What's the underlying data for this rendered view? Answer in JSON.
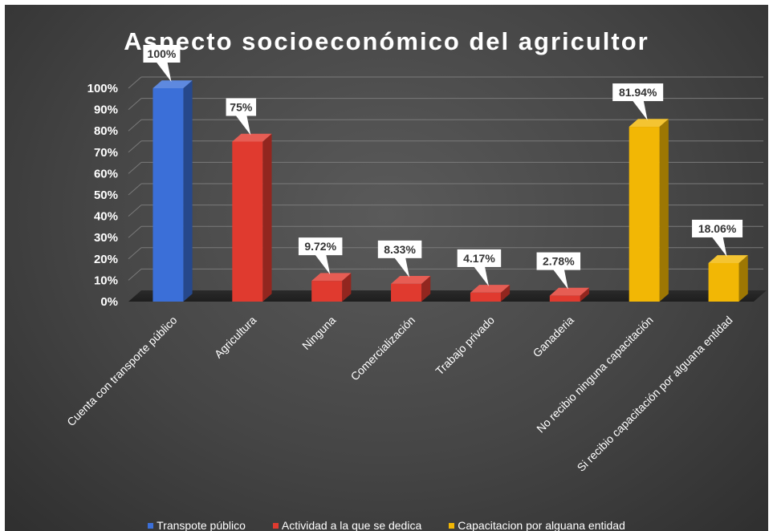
{
  "chart_data": {
    "type": "bar",
    "title": "Aspecto socioeconómico del agricultor",
    "categories": [
      "Cuenta con transporte público",
      "Agricultura",
      "Ninguna",
      "Comercialización",
      "Trabajo privado",
      "Ganaderia",
      "No recibio ninguna capacitación",
      "Si recibio capacitación por alguana entidad"
    ],
    "values": [
      100,
      75,
      9.72,
      8.33,
      4.17,
      2.78,
      81.94,
      18.06
    ],
    "data_labels": [
      "100%",
      "75%",
      "9.72%",
      "8.33%",
      "4.17%",
      "2.78%",
      "81.94%",
      "18.06%"
    ],
    "series_index": [
      0,
      1,
      1,
      1,
      1,
      1,
      2,
      2
    ],
    "series": [
      {
        "name": "Transpote público",
        "color": "#3b6fd8"
      },
      {
        "name": "Actividad a la que se dedica",
        "color": "#e03a2f"
      },
      {
        "name": "Capacitacion por alguana entidad",
        "color": "#f2b705"
      }
    ],
    "y_ticks": [
      "0%",
      "10%",
      "20%",
      "30%",
      "40%",
      "50%",
      "60%",
      "70%",
      "80%",
      "90%",
      "100%"
    ],
    "ylim": [
      0,
      100
    ],
    "grid": true,
    "legend_position": "bottom",
    "style": "3d-column"
  }
}
